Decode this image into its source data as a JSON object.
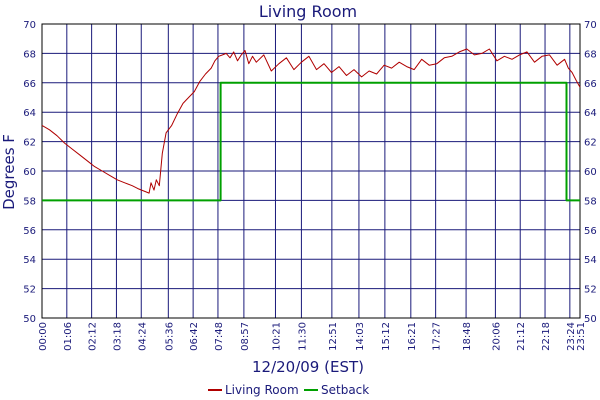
{
  "chart_data": {
    "type": "line",
    "title": "Living Room",
    "xlabel": "12/20/09 (EST)",
    "ylabel": "Degrees F",
    "ylim": [
      50,
      70
    ],
    "yticks": [
      50,
      52,
      54,
      56,
      58,
      60,
      62,
      64,
      66,
      68,
      70
    ],
    "x_range_minutes": [
      0,
      1431
    ],
    "xtick_labels": [
      "00:00",
      "01:06",
      "02:12",
      "03:18",
      "04:24",
      "05:36",
      "06:42",
      "07:48",
      "08:57",
      "10:21",
      "11:30",
      "12:51",
      "14:03",
      "15:12",
      "16:21",
      "17:27",
      "18:48",
      "20:06",
      "21:12",
      "22:18",
      "23:24",
      "23:51"
    ],
    "xtick_minutes": [
      0,
      66,
      132,
      198,
      264,
      336,
      402,
      468,
      537,
      621,
      690,
      771,
      843,
      912,
      981,
      1047,
      1128,
      1206,
      1272,
      1338,
      1404,
      1431
    ],
    "grid": true,
    "legend_position": "bottom",
    "colors": {
      "grid": "#1a1a7a",
      "axis_text": "#1a1a7a",
      "plot_border": "#000000"
    },
    "series": [
      {
        "name": "Living Room",
        "color": "#b00000",
        "x_minutes": [
          0,
          20,
          40,
          60,
          80,
          100,
          120,
          140,
          160,
          180,
          200,
          220,
          240,
          255,
          265,
          275,
          285,
          290,
          298,
          304,
          312,
          320,
          330,
          345,
          360,
          375,
          390,
          405,
          420,
          435,
          450,
          460,
          470,
          480,
          490,
          500,
          510,
          520,
          530,
          540,
          550,
          560,
          570,
          590,
          610,
          630,
          650,
          670,
          690,
          710,
          730,
          750,
          770,
          790,
          810,
          830,
          850,
          870,
          890,
          910,
          930,
          950,
          970,
          990,
          1010,
          1030,
          1050,
          1070,
          1090,
          1110,
          1130,
          1150,
          1170,
          1190,
          1210,
          1230,
          1250,
          1270,
          1290,
          1310,
          1330,
          1350,
          1370,
          1390,
          1400,
          1410,
          1420,
          1431
        ],
        "values": [
          63.1,
          62.8,
          62.4,
          61.9,
          61.5,
          61.1,
          60.7,
          60.3,
          60.0,
          59.7,
          59.4,
          59.2,
          59.0,
          58.8,
          58.7,
          58.6,
          58.5,
          59.2,
          58.7,
          59.4,
          59.0,
          61.2,
          62.6,
          63.1,
          63.9,
          64.6,
          65.0,
          65.4,
          66.1,
          66.6,
          67.0,
          67.5,
          67.8,
          67.9,
          68.0,
          67.7,
          68.1,
          67.5,
          67.9,
          68.2,
          67.3,
          67.8,
          67.4,
          67.9,
          66.8,
          67.3,
          67.7,
          66.9,
          67.4,
          67.8,
          66.9,
          67.3,
          66.7,
          67.1,
          66.5,
          66.9,
          66.4,
          66.8,
          66.6,
          67.2,
          67.0,
          67.4,
          67.1,
          66.9,
          67.6,
          67.2,
          67.3,
          67.7,
          67.8,
          68.1,
          68.3,
          67.9,
          68.0,
          68.3,
          67.5,
          67.8,
          67.6,
          67.9,
          68.1,
          67.4,
          67.8,
          67.9,
          67.2,
          67.6,
          67.0,
          66.7,
          66.2,
          65.7
        ]
      },
      {
        "name": "Setback",
        "color": "#00a000",
        "x_minutes": [
          0,
          475,
          475,
          1395,
          1395,
          1431
        ],
        "values": [
          58,
          58,
          66,
          66,
          58,
          58
        ]
      }
    ]
  }
}
